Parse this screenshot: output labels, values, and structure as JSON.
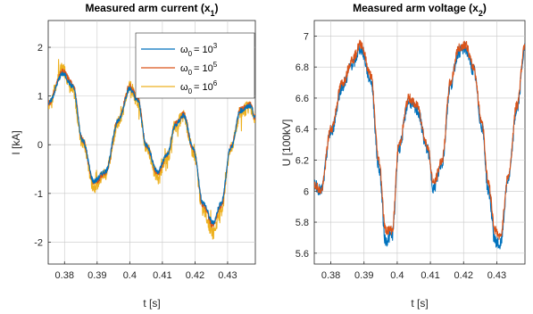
{
  "chart_data": [
    {
      "type": "line",
      "title": "Measured arm current (x",
      "title_sub": "1",
      "title_end": ")",
      "xlabel": "t [s]",
      "ylabel": "I [kA]",
      "xlim": [
        0.375,
        0.4385
      ],
      "ylim": [
        -2.45,
        2.55
      ],
      "xticks": [
        0.38,
        0.39,
        0.4,
        0.41,
        0.42,
        0.43
      ],
      "xtick_labels": [
        "0.38",
        "0.39",
        "0.4",
        "0.41",
        "0.42",
        "0.43"
      ],
      "yticks": [
        -2,
        -1,
        0,
        1,
        2
      ],
      "ytick_labels": [
        "-2",
        "-1",
        "0",
        "1",
        "2"
      ],
      "grid": true,
      "legend_position": "top-right",
      "x": [
        0.375,
        0.3795,
        0.3825,
        0.3855,
        0.389,
        0.3925,
        0.3965,
        0.4,
        0.4025,
        0.405,
        0.4085,
        0.4115,
        0.414,
        0.4165,
        0.4195,
        0.4225,
        0.4255,
        0.428,
        0.431,
        0.434,
        0.437,
        0.4385
      ],
      "series": [
        {
          "name": "ω",
          "name_sub": "0",
          "name_rest": "= 10",
          "name_sup": "3",
          "color": "#0072BD",
          "noise": 0.05,
          "values": [
            0.85,
            1.45,
            1.2,
            0.1,
            -0.75,
            -0.55,
            0.5,
            1.15,
            0.9,
            0.0,
            -0.55,
            -0.2,
            0.4,
            0.6,
            -0.1,
            -1.2,
            -1.6,
            -1.2,
            -0.05,
            0.7,
            0.8,
            0.55
          ]
        },
        {
          "name": "ω",
          "name_sub": "0",
          "name_rest": "= 10",
          "name_sup": "5",
          "color": "#D95319",
          "noise": 0.06,
          "values": [
            0.85,
            1.5,
            1.25,
            0.1,
            -0.78,
            -0.58,
            0.5,
            1.2,
            0.95,
            0.0,
            -0.58,
            -0.22,
            0.42,
            0.62,
            -0.1,
            -1.25,
            -1.65,
            -1.25,
            -0.05,
            0.72,
            0.82,
            0.55
          ]
        },
        {
          "name": "ω",
          "name_sub": "0",
          "name_rest": "= 10",
          "name_sup": "6",
          "color": "#EDB120",
          "noise": 0.14,
          "values": [
            0.85,
            1.55,
            1.1,
            0.05,
            -0.85,
            -0.6,
            0.45,
            1.2,
            0.9,
            -0.05,
            -0.65,
            -0.25,
            0.4,
            0.58,
            -0.15,
            -1.35,
            -1.8,
            -1.35,
            -0.1,
            0.68,
            0.78,
            0.5
          ]
        }
      ]
    },
    {
      "type": "line",
      "title": "Measured arm voltage (x",
      "title_sub": "2",
      "title_end": ")",
      "xlabel": "t [s]",
      "ylabel": "U [100kV]",
      "xlim": [
        0.375,
        0.4385
      ],
      "ylim": [
        5.53,
        7.1
      ],
      "xticks": [
        0.38,
        0.39,
        0.4,
        0.41,
        0.42,
        0.43
      ],
      "xtick_labels": [
        "0.38",
        "0.39",
        "0.4",
        "0.41",
        "0.42",
        "0.43"
      ],
      "yticks": [
        5.6,
        5.8,
        6,
        6.2,
        6.4,
        6.6,
        6.8,
        7
      ],
      "ytick_labels": [
        "5.6",
        "5.8",
        "6",
        "6.2",
        "6.4",
        "6.6",
        "6.8",
        "7"
      ],
      "grid": true,
      "x": [
        0.375,
        0.377,
        0.38,
        0.3835,
        0.3865,
        0.389,
        0.392,
        0.3945,
        0.3965,
        0.3985,
        0.4005,
        0.4035,
        0.406,
        0.409,
        0.411,
        0.4135,
        0.416,
        0.4185,
        0.4205,
        0.423,
        0.4255,
        0.4275,
        0.4295,
        0.431,
        0.4335,
        0.436,
        0.4385
      ],
      "series": [
        {
          "color": "#D95319",
          "noise": 0.03,
          "values": [
            6.05,
            6.0,
            6.4,
            6.7,
            6.85,
            6.95,
            6.75,
            6.2,
            5.75,
            5.75,
            6.3,
            6.6,
            6.55,
            6.3,
            6.05,
            6.2,
            6.7,
            6.92,
            6.95,
            6.8,
            6.45,
            6.05,
            5.75,
            5.7,
            6.1,
            6.55,
            6.95
          ]
        },
        {
          "color": "#0072BD",
          "noise": 0.04,
          "values": [
            6.05,
            6.0,
            6.38,
            6.68,
            6.82,
            6.92,
            6.72,
            6.15,
            5.68,
            5.72,
            6.28,
            6.58,
            6.52,
            6.28,
            6.02,
            6.18,
            6.68,
            6.9,
            6.92,
            6.78,
            6.42,
            6.0,
            5.68,
            5.65,
            6.08,
            6.52,
            6.92
          ]
        }
      ]
    }
  ]
}
